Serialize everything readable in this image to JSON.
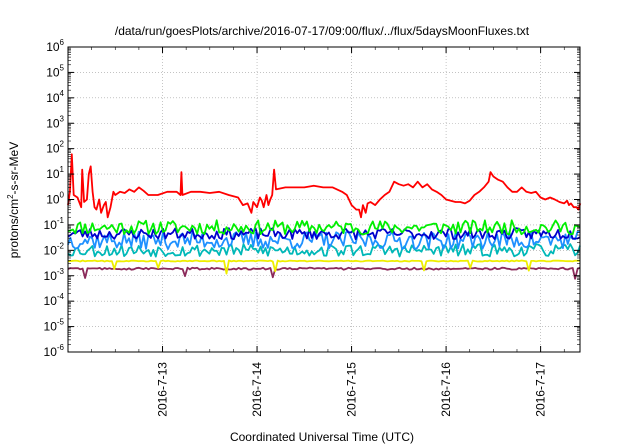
{
  "chart_data": {
    "type": "line",
    "title": "/data/run/goesPlots/archive/2016-07-17/09:00/flux/../flux/5daysMoonFluxes.txt",
    "xlabel": "Coordinated Universal Time (UTC)",
    "ylabel": {
      "base": "protons/cm",
      "sup": "2",
      "rest": "-s-sr-MeV"
    },
    "yscale": "log",
    "ylim_exp": [
      -6,
      6
    ],
    "ytick_exponents": [
      -6,
      -5,
      -4,
      -3,
      -2,
      -1,
      0,
      1,
      2,
      3,
      4,
      5,
      6
    ],
    "xlim_days": [
      "2016-07-12T00:00",
      "2016-07-17T10:00"
    ],
    "xticks": [
      {
        "label": "2016-7-13",
        "day": "2016-07-13"
      },
      {
        "label": "2016-7-14",
        "day": "2016-07-14"
      },
      {
        "label": "2016-7-15",
        "day": "2016-07-15"
      },
      {
        "label": "2016-7-16",
        "day": "2016-07-16"
      },
      {
        "label": "2016-7-17",
        "day": "2016-07-17"
      }
    ],
    "grid": true,
    "colors": {
      "red": "#ff0000",
      "green": "#00ee00",
      "blue": "#0000cc",
      "lightblue": "#1e90ff",
      "cyan": "#00b8b8",
      "yellow": "#eeee00",
      "purple": "#8b2a5a"
    },
    "series": [
      {
        "color": "red",
        "points": [
          [
            0.0,
            0.6
          ],
          [
            0.02,
            2
          ],
          [
            0.04,
            60
          ],
          [
            0.06,
            1.5
          ],
          [
            0.1,
            1.2
          ],
          [
            0.14,
            0.5
          ],
          [
            0.15,
            15
          ],
          [
            0.17,
            0.8
          ],
          [
            0.2,
            1
          ],
          [
            0.22,
            10
          ],
          [
            0.24,
            20
          ],
          [
            0.26,
            2
          ],
          [
            0.28,
            0.5
          ],
          [
            0.3,
            0.4
          ],
          [
            0.33,
            1
          ],
          [
            0.35,
            0.3
          ],
          [
            0.38,
            0.6
          ],
          [
            0.4,
            0.8
          ],
          [
            0.42,
            0.2
          ],
          [
            0.45,
            0.5
          ],
          [
            0.48,
            2
          ],
          [
            0.5,
            1.5
          ],
          [
            0.55,
            2
          ],
          [
            0.6,
            1.8
          ],
          [
            0.65,
            2.5
          ],
          [
            0.7,
            2
          ],
          [
            0.75,
            3
          ],
          [
            0.8,
            2.2
          ],
          [
            0.85,
            1.5
          ],
          [
            0.95,
            1.5
          ],
          [
            1.05,
            2
          ],
          [
            1.15,
            2
          ],
          [
            1.19,
            1.5
          ],
          [
            1.2,
            12
          ],
          [
            1.21,
            1.5
          ],
          [
            1.3,
            2
          ],
          [
            1.4,
            2
          ],
          [
            1.5,
            1.8
          ],
          [
            1.6,
            2
          ],
          [
            1.7,
            1.5
          ],
          [
            1.8,
            1.2
          ],
          [
            1.85,
            0.6
          ],
          [
            1.9,
            0.7
          ],
          [
            1.94,
            0.3
          ],
          [
            1.96,
            0.8
          ],
          [
            2.0,
            0.5
          ],
          [
            2.03,
            1.2
          ],
          [
            2.05,
            0.9
          ],
          [
            2.07,
            0.5
          ],
          [
            2.1,
            1.5
          ],
          [
            2.12,
            0.6
          ],
          [
            2.14,
            1
          ],
          [
            2.16,
            1.5
          ],
          [
            2.18,
            15
          ],
          [
            2.2,
            2.5
          ],
          [
            2.3,
            3
          ],
          [
            2.4,
            3
          ],
          [
            2.5,
            3
          ],
          [
            2.6,
            3.5
          ],
          [
            2.7,
            3
          ],
          [
            2.8,
            3
          ],
          [
            2.9,
            2
          ],
          [
            2.95,
            1.5
          ],
          [
            3.0,
            0.6
          ],
          [
            3.05,
            0.4
          ],
          [
            3.08,
            0.4
          ],
          [
            3.1,
            0.2
          ],
          [
            3.12,
            0.6
          ],
          [
            3.15,
            0.3
          ],
          [
            3.17,
            0.7
          ],
          [
            3.2,
            0.8
          ],
          [
            3.25,
            0.6
          ],
          [
            3.3,
            1
          ],
          [
            3.35,
            1.5
          ],
          [
            3.4,
            2
          ],
          [
            3.45,
            5
          ],
          [
            3.5,
            4
          ],
          [
            3.55,
            3.5
          ],
          [
            3.6,
            4
          ],
          [
            3.65,
            3
          ],
          [
            3.7,
            5
          ],
          [
            3.75,
            3
          ],
          [
            3.8,
            4
          ],
          [
            3.85,
            2.5
          ],
          [
            3.9,
            2
          ],
          [
            3.95,
            1.5
          ],
          [
            4.0,
            1
          ],
          [
            4.05,
            0.9
          ],
          [
            4.1,
            0.8
          ],
          [
            4.15,
            0.8
          ],
          [
            4.2,
            0.7
          ],
          [
            4.25,
            0.9
          ],
          [
            4.3,
            1.5
          ],
          [
            4.35,
            2
          ],
          [
            4.4,
            3
          ],
          [
            4.45,
            5
          ],
          [
            4.47,
            12
          ],
          [
            4.5,
            8
          ],
          [
            4.55,
            6
          ],
          [
            4.6,
            5
          ],
          [
            4.65,
            3
          ],
          [
            4.7,
            2
          ],
          [
            4.75,
            2
          ],
          [
            4.8,
            3
          ],
          [
            4.85,
            2
          ],
          [
            4.9,
            1.8
          ],
          [
            4.95,
            2
          ],
          [
            5.0,
            1.2
          ],
          [
            5.05,
            1
          ],
          [
            5.1,
            1.2
          ],
          [
            5.15,
            1
          ],
          [
            5.2,
            0.8
          ],
          [
            5.25,
            0.7
          ],
          [
            5.28,
            0.9
          ],
          [
            5.3,
            0.6
          ],
          [
            5.32,
            0.7
          ],
          [
            5.35,
            0.5
          ],
          [
            5.38,
            0.5
          ],
          [
            5.4,
            0.4
          ],
          [
            5.42,
            0.7
          ]
        ]
      },
      {
        "color": "green",
        "base": 0.08,
        "amp": 0.28,
        "seed": 11
      },
      {
        "color": "blue",
        "base": 0.045,
        "amp": 0.22,
        "seed": 23
      },
      {
        "color": "lightblue",
        "base": 0.025,
        "amp": 0.35,
        "seed": 37
      },
      {
        "color": "cyan",
        "base": 0.01,
        "amp": 0.25,
        "seed": 53
      },
      {
        "color": "yellow",
        "base": 0.0038,
        "amp": 0.02,
        "seed": 71
      },
      {
        "color": "purple",
        "base": 0.0019,
        "amp": 0.04,
        "seed": 89
      }
    ]
  }
}
